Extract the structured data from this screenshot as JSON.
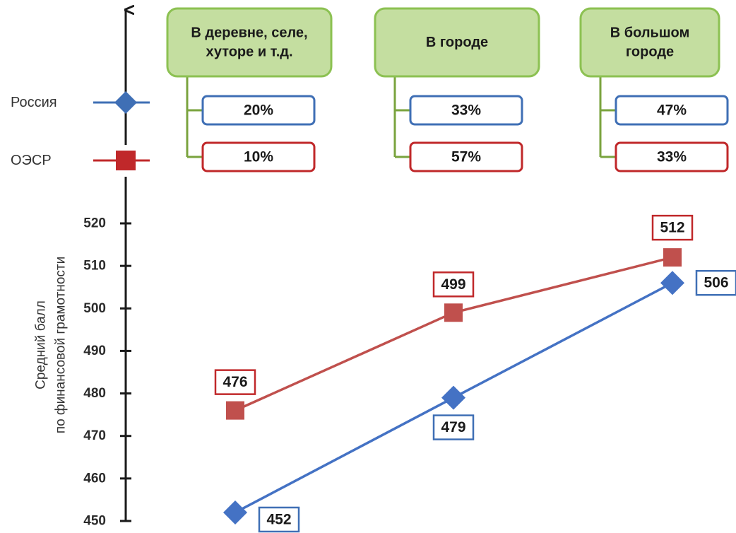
{
  "chart_data": {
    "type": "line",
    "ylabel_lines": [
      "Средний балл",
      "по финансовой грамотности"
    ],
    "ylim": [
      450,
      520
    ],
    "yticks": [
      450,
      460,
      470,
      480,
      490,
      500,
      510,
      520
    ],
    "legend": [
      {
        "label": "Россия",
        "color": "#3f6fb5",
        "marker": "diamond"
      },
      {
        "label": "ОЭСР",
        "color": "#c0282a",
        "marker": "square"
      }
    ],
    "categories": [
      {
        "lines": [
          "В деревне, селе,",
          "хуторе и т.д."
        ],
        "shares": [
          "20%",
          "10%"
        ]
      },
      {
        "lines": [
          "В городе"
        ],
        "shares": [
          "33%",
          "57%"
        ]
      },
      {
        "lines": [
          "В большом",
          "городе"
        ],
        "shares": [
          "47%",
          "33%"
        ]
      }
    ],
    "series": [
      {
        "name": "Россия",
        "color": "#4472c4",
        "label_border": "#3f6fb5",
        "marker": "diamond",
        "values": [
          452,
          479,
          506
        ]
      },
      {
        "name": "ОЭСР",
        "color": "#c0504d",
        "label_border": "#c0282a",
        "marker": "square",
        "values": [
          476,
          499,
          512
        ]
      }
    ],
    "colors": {
      "box_fill": "#c4dea0",
      "box_border": "#8cc152",
      "connector": "#7aa33e",
      "axis": "#1a1a1a"
    }
  }
}
